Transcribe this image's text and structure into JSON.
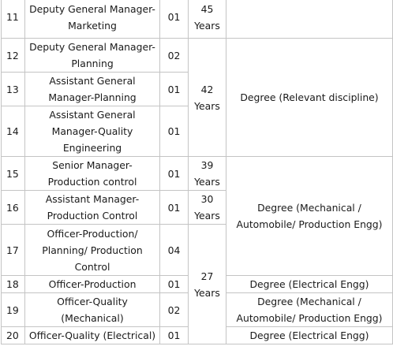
{
  "rows": [
    {
      "sl": "11",
      "post": "Deputy General Manager-Marketing",
      "vac": "01"
    },
    {
      "sl": "12",
      "post": "Deputy General Manager-Planning",
      "vac": "02"
    },
    {
      "sl": "13",
      "post": "Assistant General Manager-Planning",
      "vac": "01"
    },
    {
      "sl": "14",
      "post": "Assistant General Manager-Quality Engineering",
      "vac": "01"
    },
    {
      "sl": "15",
      "post": "Senior Manager-Production control",
      "vac": "01"
    },
    {
      "sl": "16",
      "post": "Assistant Manager-Production Control",
      "vac": "01"
    },
    {
      "sl": "17",
      "post": "Officer-Production/ Planning/ Production Control",
      "vac": "04"
    },
    {
      "sl": "18",
      "post": "Officer-Production",
      "vac": "01"
    },
    {
      "sl": "19",
      "post": "Officer-Quality (Mechanical)",
      "vac": "02"
    },
    {
      "sl": "20",
      "post": "Officer-Quality (Electrical)",
      "vac": "01"
    }
  ],
  "age": {
    "a45": "45 Years",
    "a42": "42 Years",
    "a39": "39 Years",
    "a30": "30 Years",
    "a27": "27 Years"
  },
  "qual": {
    "relevant": "Degree (Relevant discipline)",
    "mech_auto_prod_1": "Degree (Mechanical / Automobile/ Production Engg)",
    "electrical_1": "Degree (Electrical Engg)",
    "mech_auto_prod_2": "Degree (Mechanical / Automobile/ Production Engg)",
    "electrical_2": "Degree (Electrical Engg)"
  }
}
